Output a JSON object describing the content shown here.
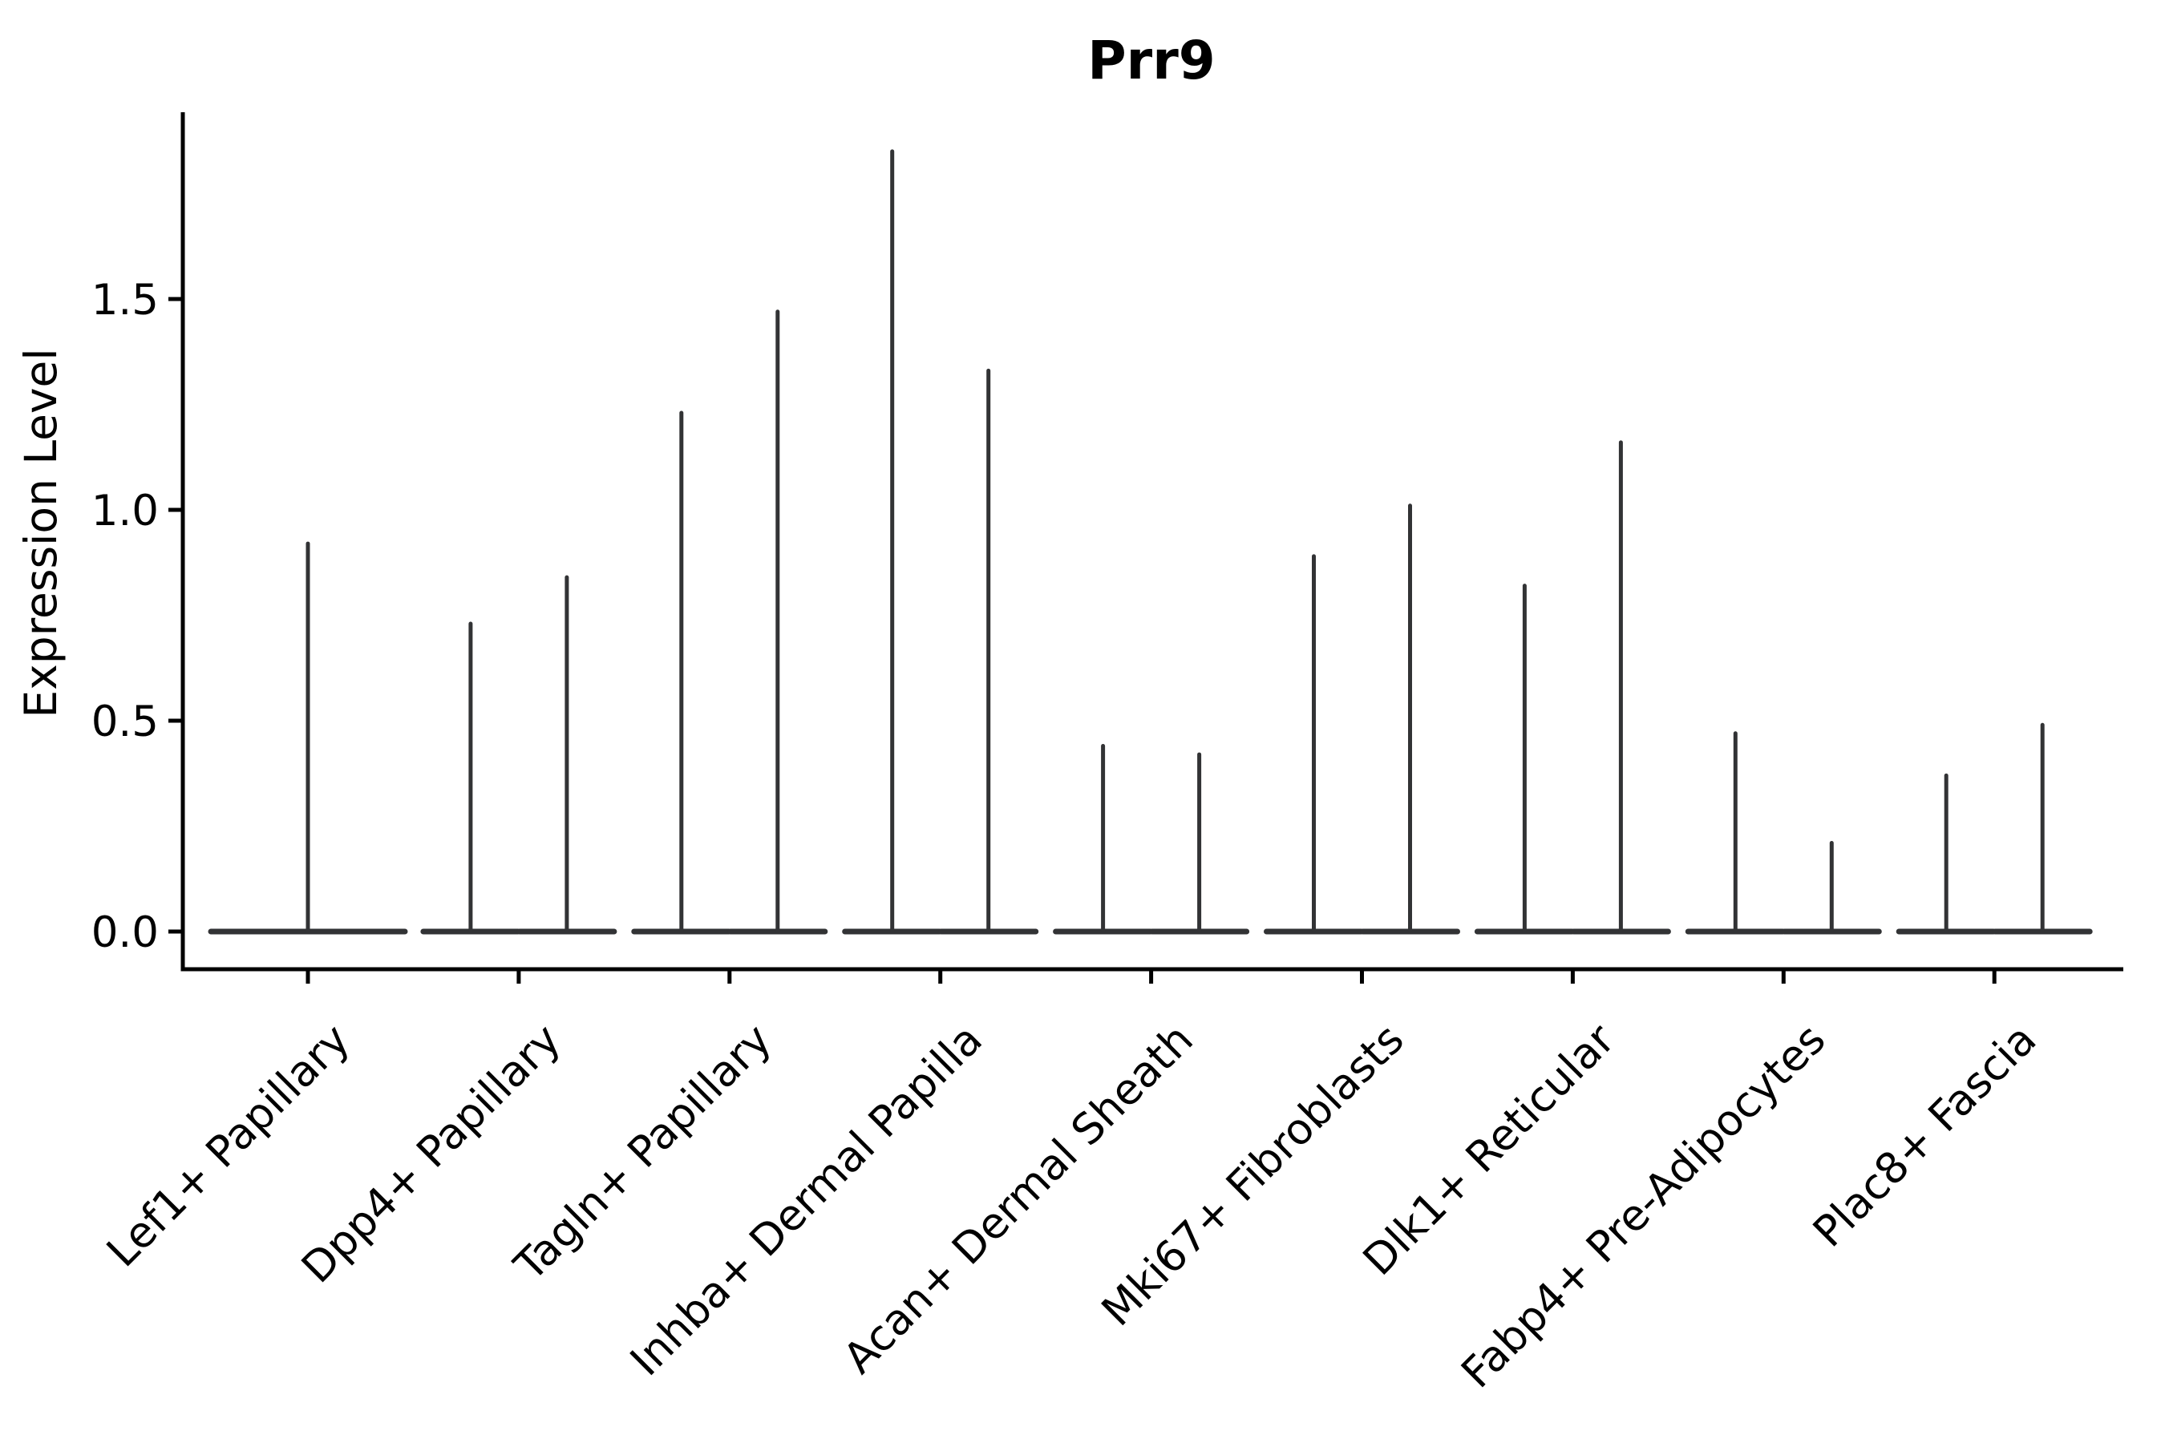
{
  "chart_data": {
    "type": "violin",
    "title": "Prr9",
    "ylabel": "Expression Level",
    "xlabel": "",
    "grid": false,
    "legend": null,
    "ylim": [
      -0.09,
      1.94
    ],
    "yticks": [
      {
        "value": 0.0,
        "label": "0.0"
      },
      {
        "value": 0.5,
        "label": "0.5"
      },
      {
        "value": 1.0,
        "label": "1.0"
      },
      {
        "value": 1.5,
        "label": "1.5"
      }
    ],
    "categories": [
      {
        "label": "Lef1+ Papillary",
        "violin_max": [
          0.92
        ]
      },
      {
        "label": "Dpp4+ Papillary",
        "violin_max": [
          0.73,
          0.84
        ]
      },
      {
        "label": "Tagln+ Papillary",
        "violin_max": [
          1.23,
          1.47
        ]
      },
      {
        "label": "Inhba+ Dermal Papilla",
        "violin_max": [
          1.85,
          1.33
        ]
      },
      {
        "label": "Acan+ Dermal Sheath",
        "violin_max": [
          0.44,
          0.42
        ]
      },
      {
        "label": "Mki67+ Fibroblasts",
        "violin_max": [
          0.89,
          1.01
        ]
      },
      {
        "label": "Dlk1+ Reticular",
        "violin_max": [
          0.82,
          1.16
        ]
      },
      {
        "label": "Fabp4+ Pre-Adipocytes",
        "violin_max": [
          0.47,
          0.21
        ]
      },
      {
        "label": "Plac8+ Fascia",
        "violin_max": [
          0.37,
          0.49
        ]
      }
    ],
    "colors": {
      "violin_stroke": "#323335",
      "axis": "#000000",
      "background": "#ffffff"
    }
  }
}
